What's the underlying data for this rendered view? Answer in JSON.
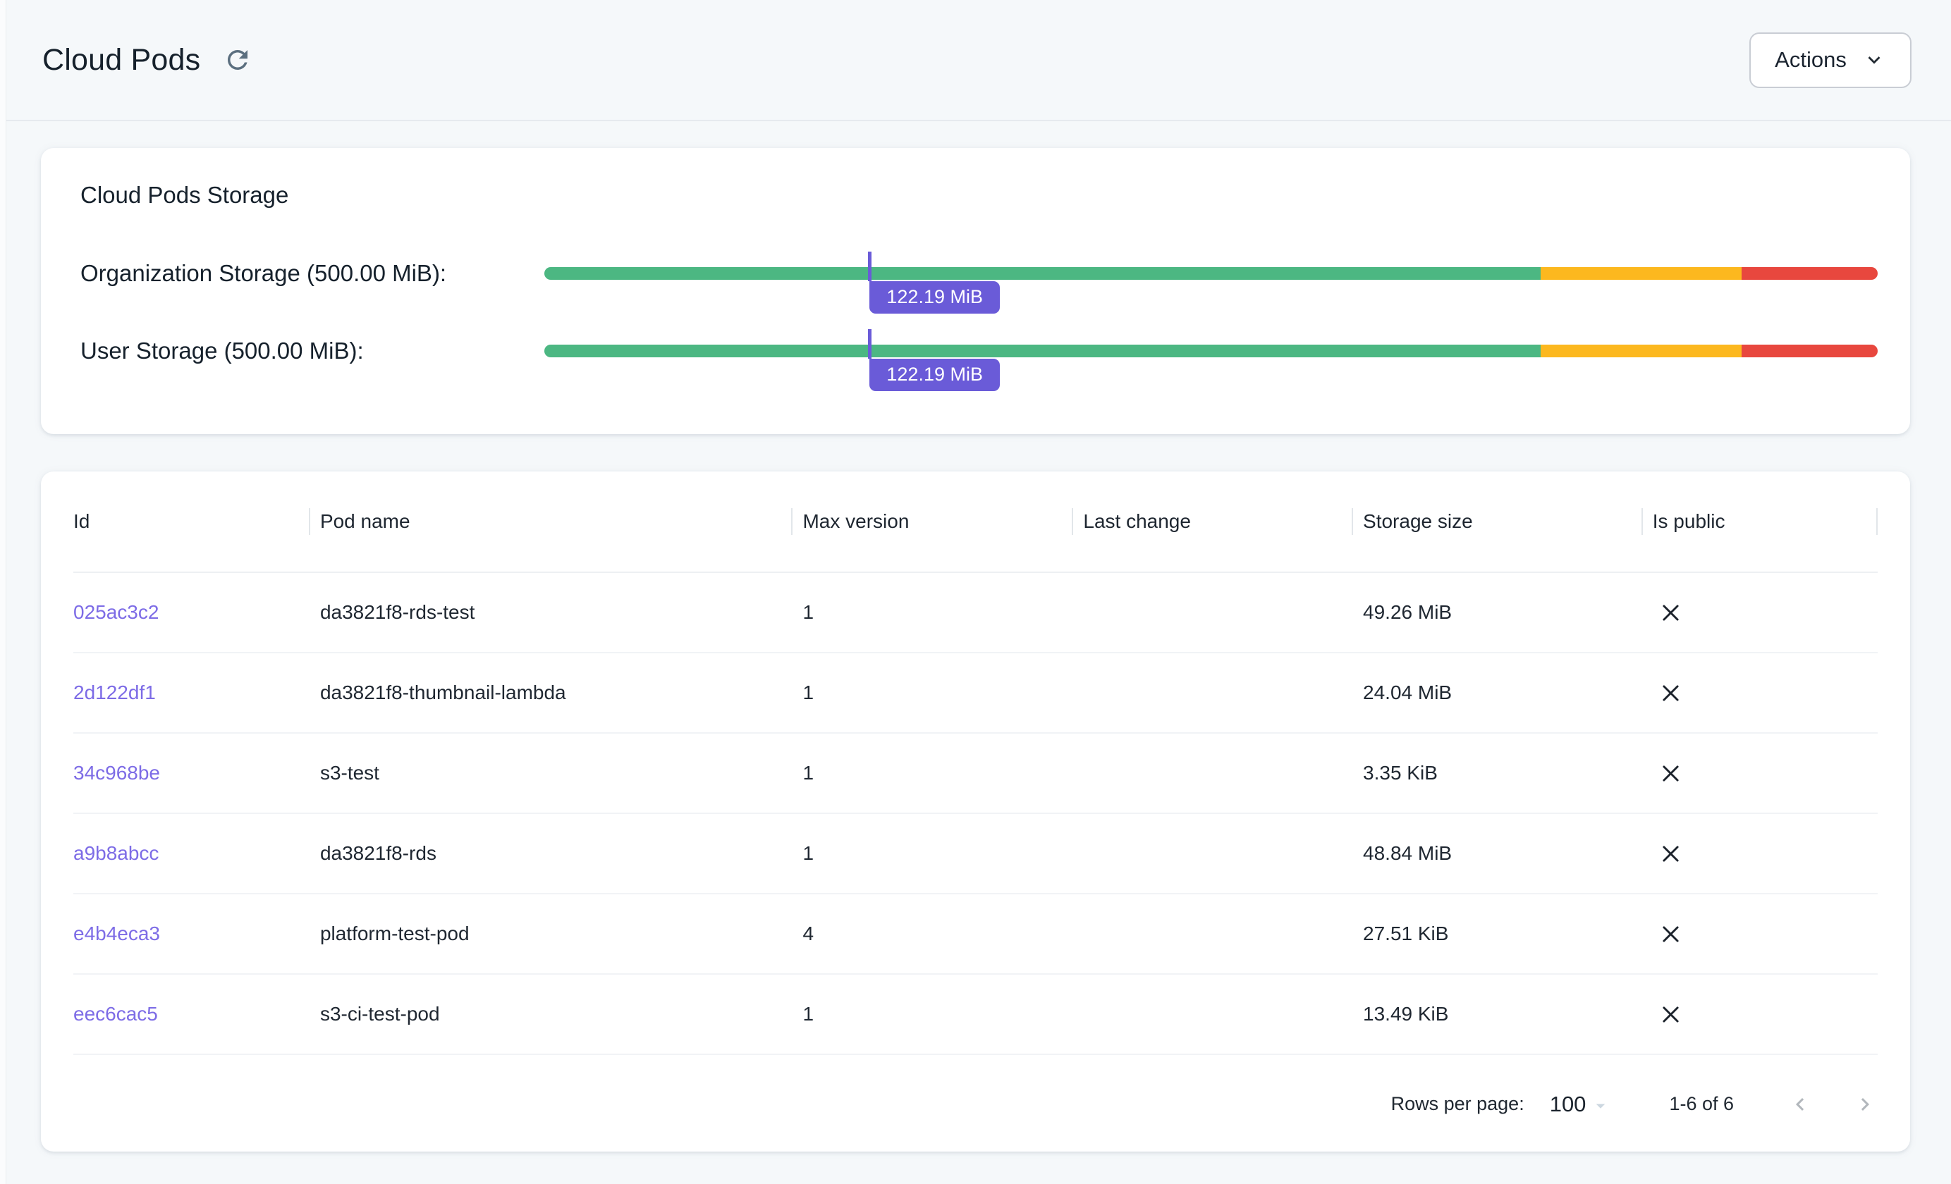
{
  "page": {
    "title": "Cloud Pods",
    "actions_button": "Actions"
  },
  "storage_card": {
    "title": "Cloud Pods Storage",
    "colors": {
      "green": "#4cb782",
      "amber": "#fcb81f",
      "red": "#e8473e",
      "purple": "#6a5bd8"
    },
    "zones": [
      {
        "color": "green",
        "pct": 74.7
      },
      {
        "color": "amber",
        "pct": 15.1
      },
      {
        "color": "red",
        "pct": 10.2
      }
    ],
    "bars": [
      {
        "label": "Organization Storage (500.00 MiB):",
        "used_label": "122.19 MiB",
        "used_pct": 24.4
      },
      {
        "label": "User Storage (500.00 MiB):",
        "used_label": "122.19 MiB",
        "used_pct": 24.4
      }
    ]
  },
  "table": {
    "columns": [
      "Id",
      "Pod name",
      "Max version",
      "Last change",
      "Storage size",
      "Is public"
    ],
    "link_color": "#7d6ce6",
    "rows": [
      {
        "id": "025ac3c2",
        "pod_name": "da3821f8-rds-test",
        "max_version": "1",
        "last_change": "",
        "storage_size": "49.26 MiB",
        "is_public": "no"
      },
      {
        "id": "2d122df1",
        "pod_name": "da3821f8-thumbnail-lambda",
        "max_version": "1",
        "last_change": "",
        "storage_size": "24.04 MiB",
        "is_public": "no"
      },
      {
        "id": "34c968be",
        "pod_name": "s3-test",
        "max_version": "1",
        "last_change": "",
        "storage_size": "3.35 KiB",
        "is_public": "no"
      },
      {
        "id": "a9b8abcc",
        "pod_name": "da3821f8-rds",
        "max_version": "1",
        "last_change": "",
        "storage_size": "48.84 MiB",
        "is_public": "no"
      },
      {
        "id": "e4b4eca3",
        "pod_name": "platform-test-pod",
        "max_version": "4",
        "last_change": "",
        "storage_size": "27.51 KiB",
        "is_public": "no"
      },
      {
        "id": "eec6cac5",
        "pod_name": "s3-ci-test-pod",
        "max_version": "1",
        "last_change": "",
        "storage_size": "13.49 KiB",
        "is_public": "no"
      }
    ],
    "pagination": {
      "rows_per_page_label": "Rows per page:",
      "rows_per_page_value": "100",
      "range_label": "1-6 of 6"
    }
  }
}
